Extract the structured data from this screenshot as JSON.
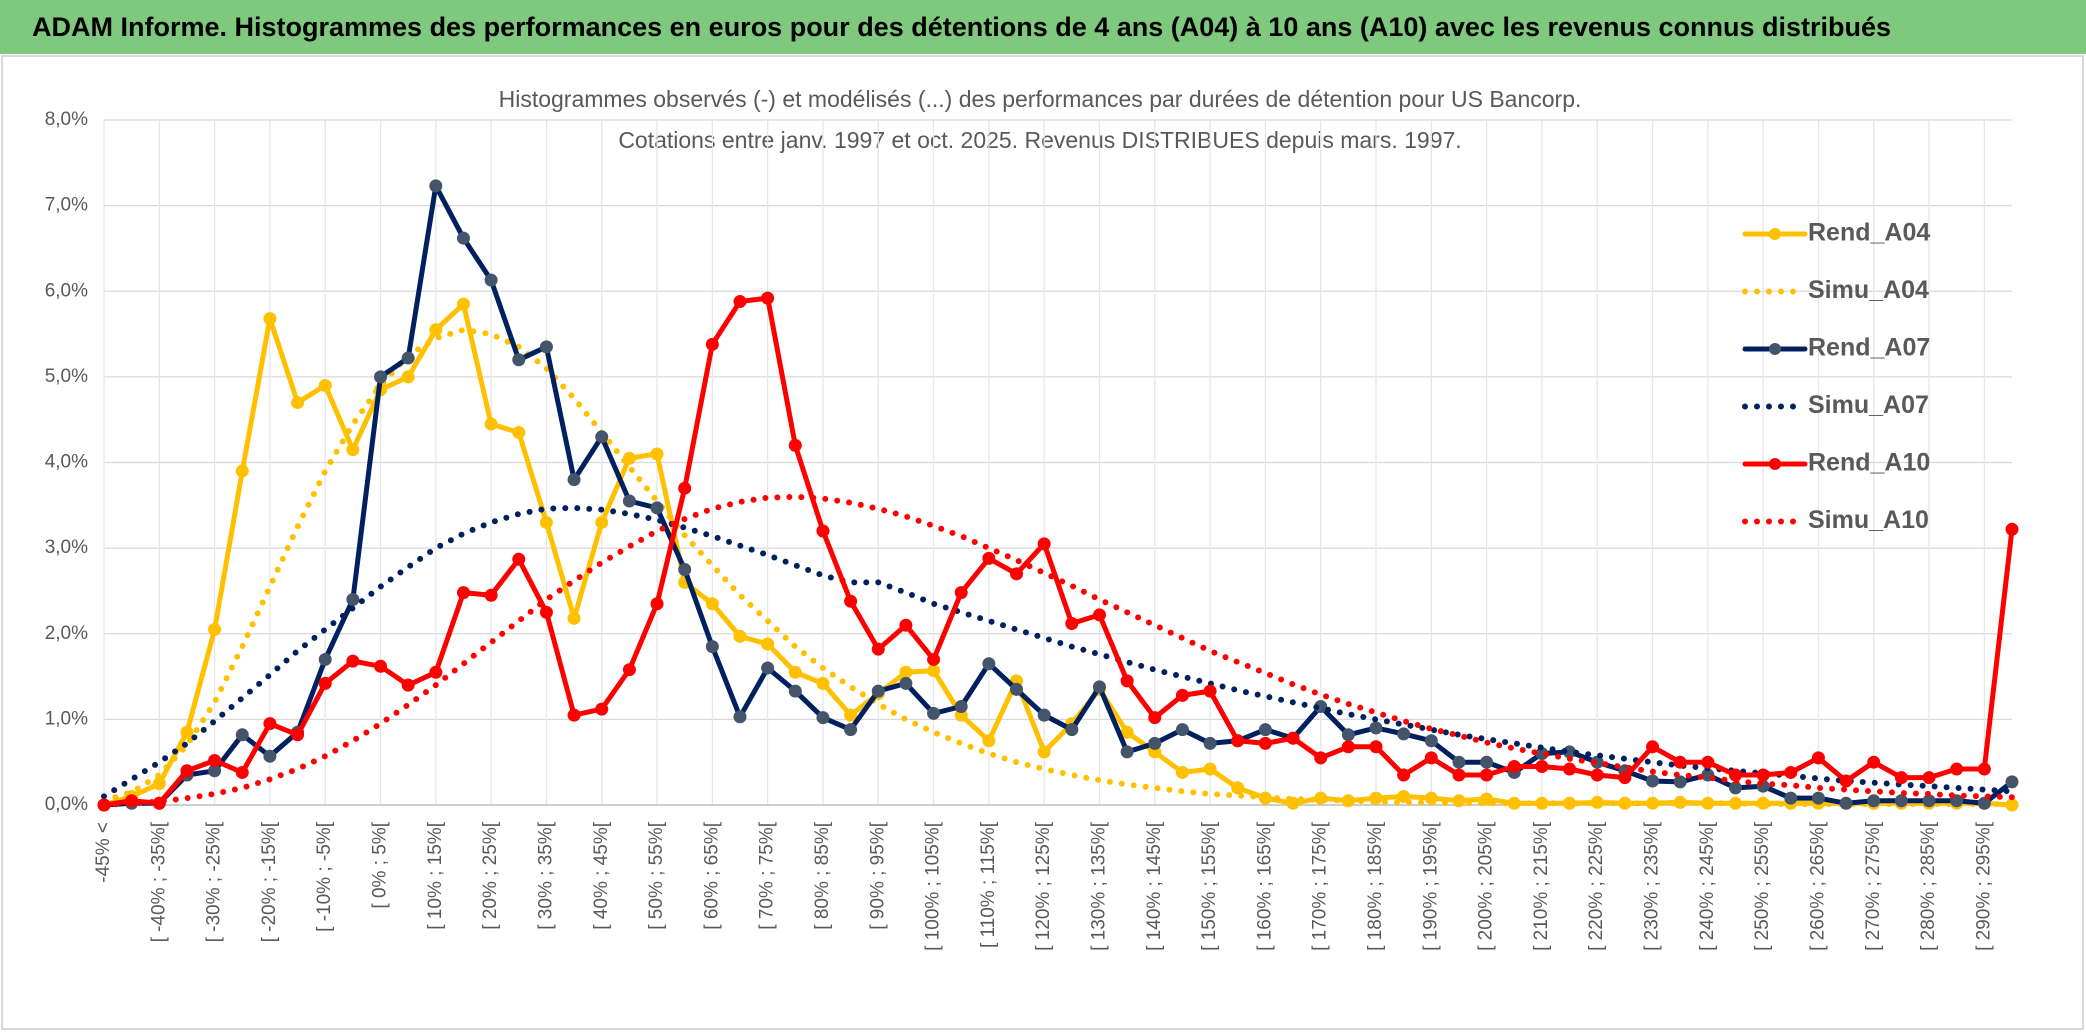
{
  "header": {
    "title": "ADAM Informe. Histogrammes des performances en euros pour des détentions de 4 ans (A04) à 10 ans (A10) avec les revenus connus distribués"
  },
  "chart_data": {
    "type": "line",
    "title": "Histogrammes observés (-) et modélisés (...) des performances par durées de détention pour US Bancorp.",
    "subtitle": "Cotations entre janv. 1997 et oct. 2025. Revenus DISTRIBUES depuis mars. 1997.",
    "categories": [
      "-45% <",
      null,
      "[ -40% ; -35%[",
      null,
      "[ -30% ; -25%[",
      null,
      "[ -20% ; -15%[",
      null,
      "[ -10% ; -5%[",
      null,
      "[ 0% ; 5%[",
      null,
      "[ 10% ; 15%[",
      null,
      "[ 20% ; 25%[",
      null,
      "[ 30% ; 35%[",
      null,
      "[ 40% ; 45%[",
      null,
      "[ 50% ; 55%[",
      null,
      "[ 60% ; 65%[",
      null,
      "[ 70% ; 75%[",
      null,
      "[ 80% ; 85%[",
      null,
      "[ 90% ; 95%[",
      null,
      "[ 100% ; 105%[",
      null,
      "[ 110% ; 115%[",
      null,
      "[ 120% ; 125%[",
      null,
      "[ 130% ; 135%[",
      null,
      "[ 140% ; 145%[",
      null,
      "[ 150% ; 155%[",
      null,
      "[ 160% ; 165%[",
      null,
      "[ 170% ; 175%[",
      null,
      "[ 180% ; 185%[",
      null,
      "[ 190% ; 195%[",
      null,
      "[ 200% ; 205%[",
      null,
      "[ 210% ; 215%[",
      null,
      "[ 220% ; 225%[",
      null,
      "[ 230% ; 235%[",
      null,
      "[ 240% ; 245%[",
      null,
      "[ 250% ; 255%[",
      null,
      "[ 260% ; 265%[",
      null,
      "[ 270% ; 275%[",
      null,
      "[ 280% ; 285%[",
      null,
      "[ 290% ; 295%[",
      null
    ],
    "series": [
      {
        "name": "Rend_A04",
        "color": "#ffc000",
        "style": "solid",
        "markers": true,
        "values": [
          0.0,
          0.1,
          0.25,
          0.85,
          2.05,
          3.9,
          5.68,
          4.7,
          4.9,
          4.15,
          4.85,
          5.0,
          5.55,
          5.85,
          4.45,
          4.35,
          3.3,
          2.18,
          3.3,
          4.05,
          4.1,
          2.6,
          2.35,
          1.97,
          1.88,
          1.55,
          1.42,
          1.05,
          1.3,
          1.55,
          1.57,
          1.05,
          0.75,
          1.45,
          0.62,
          0.95,
          1.35,
          0.85,
          0.62,
          0.38,
          0.42,
          0.2,
          0.08,
          0.02,
          0.08,
          0.05,
          0.08,
          0.1,
          0.08,
          0.05,
          0.07,
          0.02,
          0.02,
          0.02,
          0.03,
          0.02,
          0.02,
          0.03,
          0.02,
          0.02,
          0.02,
          0.02,
          0.02,
          0.02,
          0.02,
          0.02,
          0.02,
          0.02,
          0.02,
          0.0
        ]
      },
      {
        "name": "Simu_A04",
        "color": "#ffc000",
        "style": "dotted",
        "markers": false,
        "values": [
          0.05,
          0.15,
          0.35,
          0.7,
          1.2,
          1.85,
          2.55,
          3.25,
          3.9,
          4.45,
          4.9,
          5.25,
          5.45,
          5.55,
          5.5,
          5.35,
          5.1,
          4.75,
          4.35,
          3.95,
          3.55,
          3.15,
          2.8,
          2.45,
          2.15,
          1.85,
          1.6,
          1.38,
          1.18,
          1.0,
          0.85,
          0.72,
          0.6,
          0.5,
          0.42,
          0.35,
          0.29,
          0.24,
          0.2,
          0.16,
          0.13,
          0.11,
          0.09,
          0.07,
          0.06,
          0.05,
          0.04,
          0.03,
          0.03,
          0.02,
          0.02,
          0.02,
          0.02,
          0.02,
          0.02,
          0.02,
          0.02,
          0.02,
          0.02,
          0.02,
          0.01,
          0.01,
          0.01,
          0.01,
          0.01,
          0.01,
          0.01,
          0.01,
          0.01,
          0.01
        ]
      },
      {
        "name": "Rend_A07",
        "color": "#002060",
        "markerColor": "#44546a",
        "style": "solid",
        "markers": true,
        "values": [
          0.0,
          0.02,
          0.02,
          0.35,
          0.4,
          0.82,
          0.57,
          0.85,
          1.7,
          2.4,
          5.0,
          5.22,
          7.23,
          6.62,
          6.13,
          5.2,
          5.35,
          3.8,
          4.3,
          3.55,
          3.47,
          2.75,
          1.85,
          1.03,
          1.6,
          1.33,
          1.02,
          0.88,
          1.33,
          1.42,
          1.07,
          1.15,
          1.65,
          1.35,
          1.05,
          0.88,
          1.38,
          0.62,
          0.72,
          0.88,
          0.72,
          0.75,
          0.88,
          0.78,
          1.15,
          0.82,
          0.9,
          0.83,
          0.75,
          0.5,
          0.5,
          0.38,
          0.6,
          0.62,
          0.5,
          0.4,
          0.28,
          0.27,
          0.35,
          0.2,
          0.22,
          0.08,
          0.08,
          0.02,
          0.05,
          0.05,
          0.05,
          0.05,
          0.02,
          0.27
        ]
      },
      {
        "name": "Simu_A07",
        "color": "#002060",
        "style": "dotted",
        "markers": false,
        "values": [
          0.1,
          0.3,
          0.5,
          0.72,
          0.98,
          1.25,
          1.52,
          1.8,
          2.05,
          2.3,
          2.55,
          2.78,
          3.0,
          3.17,
          3.3,
          3.4,
          3.46,
          3.47,
          3.45,
          3.4,
          3.33,
          3.24,
          3.14,
          3.03,
          2.92,
          2.8,
          2.68,
          2.6,
          2.6,
          2.48,
          2.35,
          2.25,
          2.15,
          2.05,
          1.95,
          1.85,
          1.76,
          1.67,
          1.58,
          1.5,
          1.42,
          1.34,
          1.27,
          1.2,
          1.13,
          1.06,
          1.0,
          0.94,
          0.88,
          0.82,
          0.77,
          0.72,
          0.67,
          0.62,
          0.58,
          0.54,
          0.5,
          0.46,
          0.43,
          0.4,
          0.37,
          0.34,
          0.31,
          0.28,
          0.26,
          0.24,
          0.22,
          0.2,
          0.18,
          0.16
        ]
      },
      {
        "name": "Rend_A10",
        "color": "#ff0000",
        "style": "solid",
        "markers": true,
        "values": [
          0.0,
          0.05,
          0.02,
          0.4,
          0.52,
          0.38,
          0.95,
          0.82,
          1.42,
          1.68,
          1.62,
          1.4,
          1.55,
          2.48,
          2.45,
          2.87,
          2.25,
          1.05,
          1.12,
          1.58,
          2.35,
          3.7,
          5.38,
          5.88,
          5.92,
          4.2,
          3.2,
          2.38,
          1.82,
          2.1,
          1.7,
          2.48,
          2.88,
          2.7,
          3.05,
          2.12,
          2.22,
          1.45,
          1.02,
          1.28,
          1.33,
          0.75,
          0.72,
          0.78,
          0.55,
          0.68,
          0.68,
          0.35,
          0.55,
          0.35,
          0.35,
          0.45,
          0.45,
          0.42,
          0.35,
          0.32,
          0.68,
          0.5,
          0.5,
          0.35,
          0.35,
          0.38,
          0.55,
          0.28,
          0.5,
          0.32,
          0.32,
          0.42,
          0.42,
          3.22
        ]
      },
      {
        "name": "Simu_A10",
        "color": "#ff0000",
        "style": "dotted",
        "markers": false,
        "values": [
          0.0,
          0.02,
          0.04,
          0.08,
          0.13,
          0.2,
          0.3,
          0.42,
          0.57,
          0.75,
          0.95,
          1.17,
          1.4,
          1.65,
          1.9,
          2.15,
          2.4,
          2.62,
          2.83,
          3.02,
          3.2,
          3.34,
          3.46,
          3.54,
          3.59,
          3.6,
          3.58,
          3.53,
          3.46,
          3.37,
          3.26,
          3.14,
          3.0,
          2.86,
          2.71,
          2.56,
          2.4,
          2.25,
          2.1,
          1.95,
          1.8,
          1.67,
          1.54,
          1.41,
          1.29,
          1.18,
          1.08,
          0.98,
          0.89,
          0.81,
          0.73,
          0.66,
          0.6,
          0.54,
          0.49,
          0.44,
          0.39,
          0.35,
          0.32,
          0.28,
          0.25,
          0.23,
          0.2,
          0.18,
          0.16,
          0.14,
          0.13,
          0.11,
          0.1,
          0.09
        ]
      }
    ],
    "ylim": [
      0,
      8
    ],
    "yticks": [
      {
        "value": 0,
        "label": "0,0%"
      },
      {
        "value": 1,
        "label": "1,0%"
      },
      {
        "value": 2,
        "label": "2,0%"
      },
      {
        "value": 3,
        "label": "3,0%"
      },
      {
        "value": 4,
        "label": "4,0%"
      },
      {
        "value": 5,
        "label": "5,0%"
      },
      {
        "value": 6,
        "label": "6,0%"
      },
      {
        "value": 7,
        "label": "7,0%"
      },
      {
        "value": 8,
        "label": "8,0%"
      }
    ],
    "grid": true,
    "legend": "right"
  }
}
